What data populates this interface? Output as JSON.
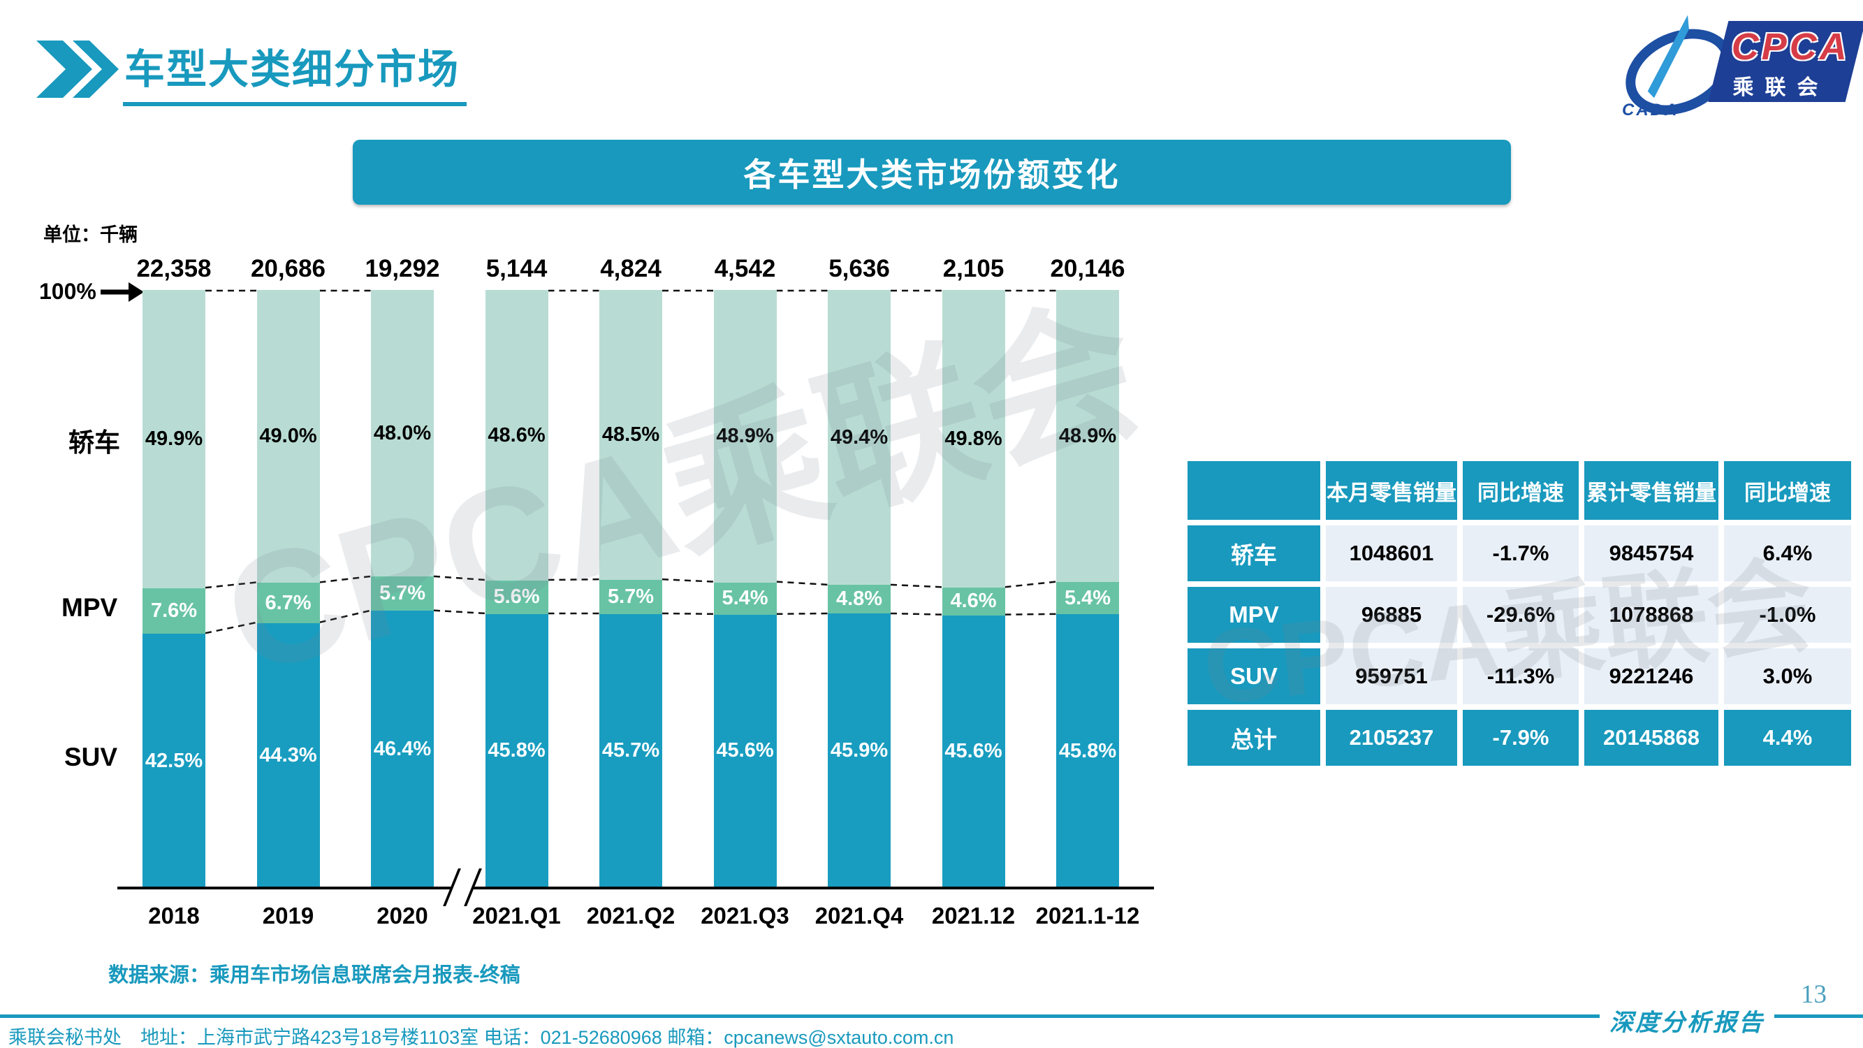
{
  "header": {
    "title": "车型大类细分市场"
  },
  "logo": {
    "cpca": "CPCA",
    "cada": "CADA",
    "subtitle": "乘联会"
  },
  "chart_banner": "各车型大类市场份额变化",
  "unit_label": "单位：千辆",
  "axis_top_label": "100%",
  "chart_data": {
    "type": "bar",
    "stacked": true,
    "title": "各车型大类市场份额变化",
    "unit": "千辆",
    "categories": [
      "2018",
      "2019",
      "2020",
      "2021.Q1",
      "2021.Q2",
      "2021.Q3",
      "2021.Q4",
      "2021.12",
      "2021.1-12"
    ],
    "totals": [
      "22,358",
      "20,686",
      "19,292",
      "5,144",
      "4,824",
      "4,542",
      "5,636",
      "2,105",
      "20,146"
    ],
    "series": [
      {
        "name": "轿车",
        "values": [
          49.9,
          49.0,
          48.0,
          48.6,
          48.5,
          48.9,
          49.4,
          49.8,
          48.9
        ],
        "color": "#B8DCD3",
        "label_color": "#000000"
      },
      {
        "name": "MPV",
        "values": [
          7.6,
          6.7,
          5.7,
          5.6,
          5.7,
          5.4,
          4.8,
          4.6,
          5.4
        ],
        "color": "#68C3A5",
        "label_color": "#ffffff"
      },
      {
        "name": "SUV",
        "values": [
          42.5,
          44.3,
          46.4,
          45.8,
          45.7,
          45.6,
          45.9,
          45.6,
          45.8
        ],
        "color": "#189DC0",
        "label_color": "#ffffff"
      }
    ],
    "value_suffix": "%",
    "ylim": [
      0,
      100
    ],
    "axis_break_after_index": 2,
    "legend_position": "left-of-bars",
    "grid": false
  },
  "table": {
    "headers": [
      "",
      "本月零售销量",
      "同比增速",
      "累计零售销量",
      "同比增速"
    ],
    "rows": [
      {
        "label": "轿车",
        "values": [
          "1048601",
          "-1.7%",
          "9845754",
          "6.4%"
        ],
        "highlight": false
      },
      {
        "label": "MPV",
        "values": [
          "96885",
          "-29.6%",
          "1078868",
          "-1.0%"
        ],
        "highlight": false
      },
      {
        "label": "SUV",
        "values": [
          "959751",
          "-11.3%",
          "9221246",
          "3.0%"
        ],
        "highlight": false
      },
      {
        "label": "总计",
        "values": [
          "2105237",
          "-7.9%",
          "20145868",
          "4.4%"
        ],
        "highlight": true
      }
    ]
  },
  "source": "数据来源：乘用车市场信息联席会月报表-终稿",
  "footer": {
    "text": "乘联会秘书处　地址：上海市武宁路423号18号楼1103室 电话：021-52680968  邮箱：cpcanews@sxtauto.com.cn",
    "report_label": "深度分析报告",
    "page_number": "13"
  },
  "watermark": "CPCA乘联会",
  "colors": {
    "accent": "#1899BD",
    "sedan": "#B8DCD3",
    "mpv": "#68C3A5",
    "suv": "#189DC0",
    "table_cell": "#E9EFF7"
  }
}
